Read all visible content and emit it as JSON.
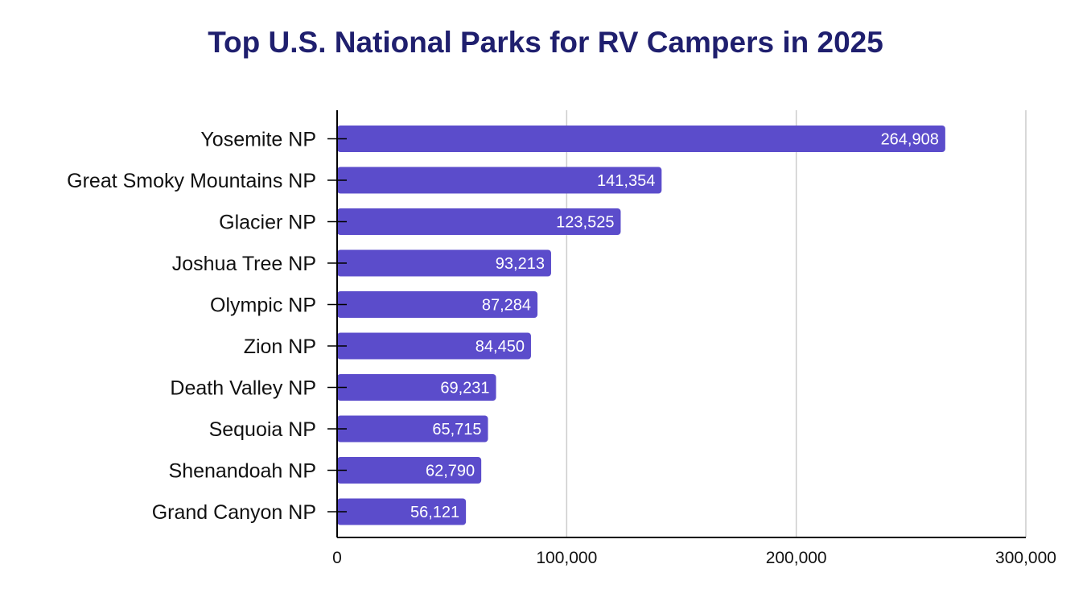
{
  "chart_data": {
    "type": "bar",
    "orientation": "horizontal",
    "title": "Top U.S. National Parks for RV Campers in 2025",
    "xlabel": "",
    "ylabel": "",
    "categories": [
      "Yosemite NP",
      "Great Smoky Mountains NP",
      "Glacier NP",
      "Joshua Tree NP",
      "Olympic NP",
      "Zion NP",
      "Death Valley NP",
      "Sequoia NP",
      "Shenandoah NP",
      "Grand Canyon NP"
    ],
    "values": [
      264908,
      141354,
      123525,
      93213,
      87284,
      84450,
      69231,
      65715,
      62790,
      56121
    ],
    "value_labels": [
      "264,908",
      "141,354",
      "123,525",
      "93,213",
      "87,284",
      "84,450",
      "69,231",
      "65,715",
      "62,790",
      "56,121"
    ],
    "xlim": [
      0,
      300000
    ],
    "x_ticks": [
      0,
      100000,
      200000,
      300000
    ],
    "x_tick_labels": [
      "0",
      "100,000",
      "200,000",
      "300,000"
    ],
    "grid": true,
    "legend": "none",
    "colors": {
      "bar": "#5b4ccb",
      "title": "#1f1f6e",
      "grid": "#cccccc",
      "axis": "#000000",
      "bar_label": "#ffffff",
      "text": "#111111"
    }
  }
}
